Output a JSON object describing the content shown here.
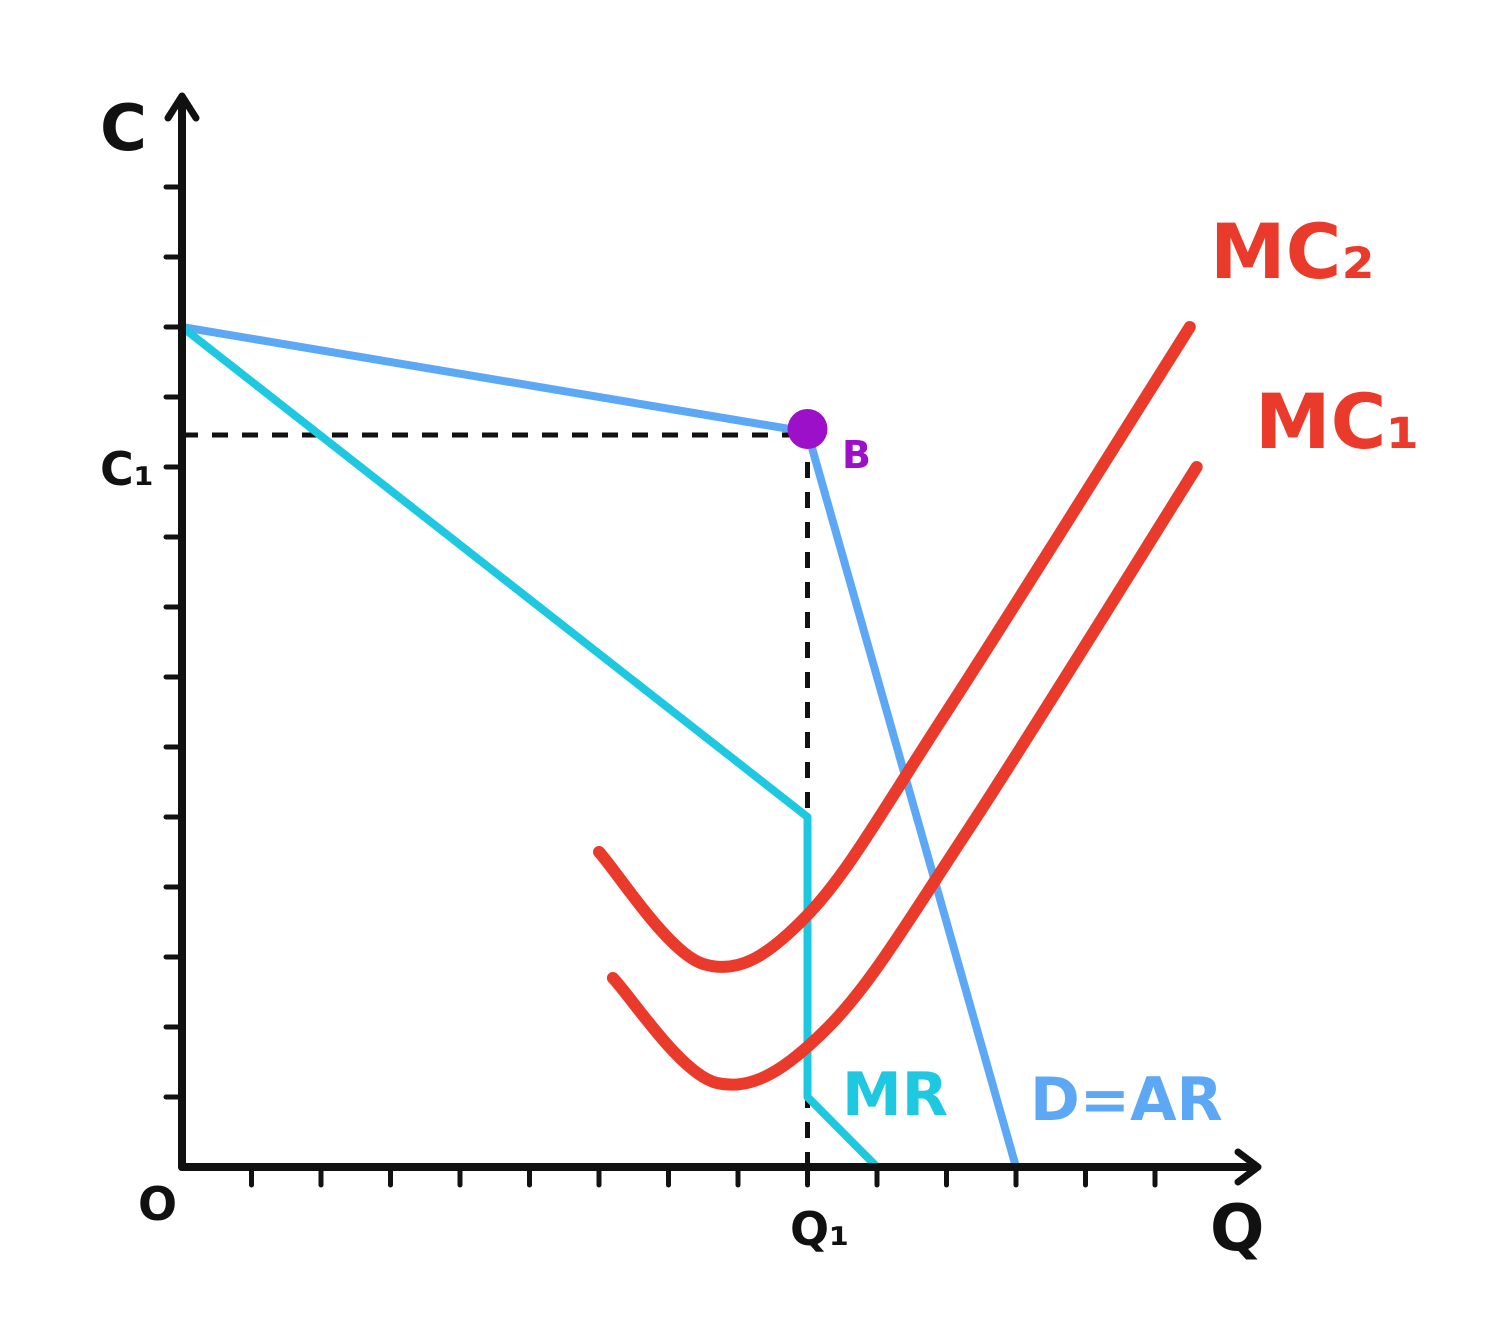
{
  "colors": {
    "axis": "#111111",
    "demand": "#5da8f5",
    "mr": "#1ec8e0",
    "mc": "#ea3a2b",
    "point": "#9b10c8",
    "guide": "#111111"
  },
  "chart_data": {
    "type": "line",
    "title": "",
    "ylabel": "C",
    "xlabel": "Q",
    "origin_label": "O",
    "x_range": [
      0,
      15
    ],
    "y_range": [
      0,
      15
    ],
    "grid": false,
    "ticks": {
      "x": [
        1,
        2,
        3,
        4,
        5,
        6,
        7,
        8,
        9,
        10,
        11,
        12,
        13,
        14
      ],
      "y": [
        1,
        2,
        3,
        4,
        5,
        6,
        7,
        8,
        9,
        10,
        11,
        12,
        13,
        14
      ]
    },
    "marked_y": {
      "label": "C₁",
      "value": 10.5
    },
    "marked_x": {
      "label": "Q₁",
      "value": 9
    },
    "point": {
      "label": "B",
      "x": 9,
      "y": 10.5
    },
    "series": [
      {
        "name": "D=AR",
        "points": [
          [
            0,
            12
          ],
          [
            9,
            10.5
          ],
          [
            12,
            0
          ]
        ]
      },
      {
        "name": "MR",
        "points": [
          [
            0,
            12
          ],
          [
            9,
            5
          ],
          [
            9,
            1
          ],
          [
            10,
            0
          ]
        ]
      },
      {
        "name": "MC₂",
        "points": [
          [
            6,
            4.5
          ],
          [
            7.5,
            2.9
          ],
          [
            9,
            3.6
          ],
          [
            11,
            6.5
          ],
          [
            14.5,
            12
          ]
        ]
      },
      {
        "name": "MC₁",
        "points": [
          [
            6.2,
            2.7
          ],
          [
            7.7,
            1.2
          ],
          [
            9.3,
            2.0
          ],
          [
            11.3,
            4.8
          ],
          [
            14.6,
            10
          ]
        ]
      }
    ]
  }
}
